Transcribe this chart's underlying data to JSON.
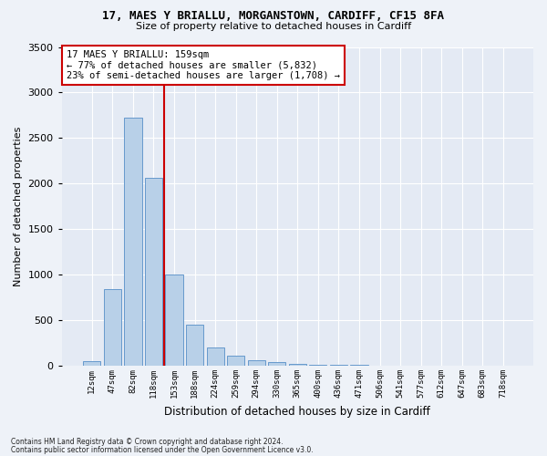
{
  "title_line1": "17, MAES Y BRIALLU, MORGANSTOWN, CARDIFF, CF15 8FA",
  "title_line2": "Size of property relative to detached houses in Cardiff",
  "xlabel": "Distribution of detached houses by size in Cardiff",
  "ylabel": "Number of detached properties",
  "bar_color": "#b8d0e8",
  "bar_edge_color": "#6699cc",
  "highlight_color": "#cc0000",
  "categories": [
    "12sqm",
    "47sqm",
    "82sqm",
    "118sqm",
    "153sqm",
    "188sqm",
    "224sqm",
    "259sqm",
    "294sqm",
    "330sqm",
    "365sqm",
    "400sqm",
    "436sqm",
    "471sqm",
    "506sqm",
    "541sqm",
    "577sqm",
    "612sqm",
    "647sqm",
    "683sqm",
    "718sqm"
  ],
  "values": [
    55,
    840,
    2720,
    2060,
    1005,
    450,
    200,
    115,
    65,
    45,
    25,
    15,
    10,
    8,
    6,
    4,
    3,
    2,
    1,
    1,
    1
  ],
  "annotation_text": "17 MAES Y BRIALLU: 159sqm\n← 77% of detached houses are smaller (5,832)\n23% of semi-detached houses are larger (1,708) →",
  "ylim": [
    0,
    3500
  ],
  "yticks": [
    0,
    500,
    1000,
    1500,
    2000,
    2500,
    3000,
    3500
  ],
  "footnote1": "Contains HM Land Registry data © Crown copyright and database right 2024.",
  "footnote2": "Contains public sector information licensed under the Open Government Licence v3.0.",
  "bg_color": "#eef2f8",
  "plot_bg_color": "#e4eaf4",
  "vline_x": 3.5
}
